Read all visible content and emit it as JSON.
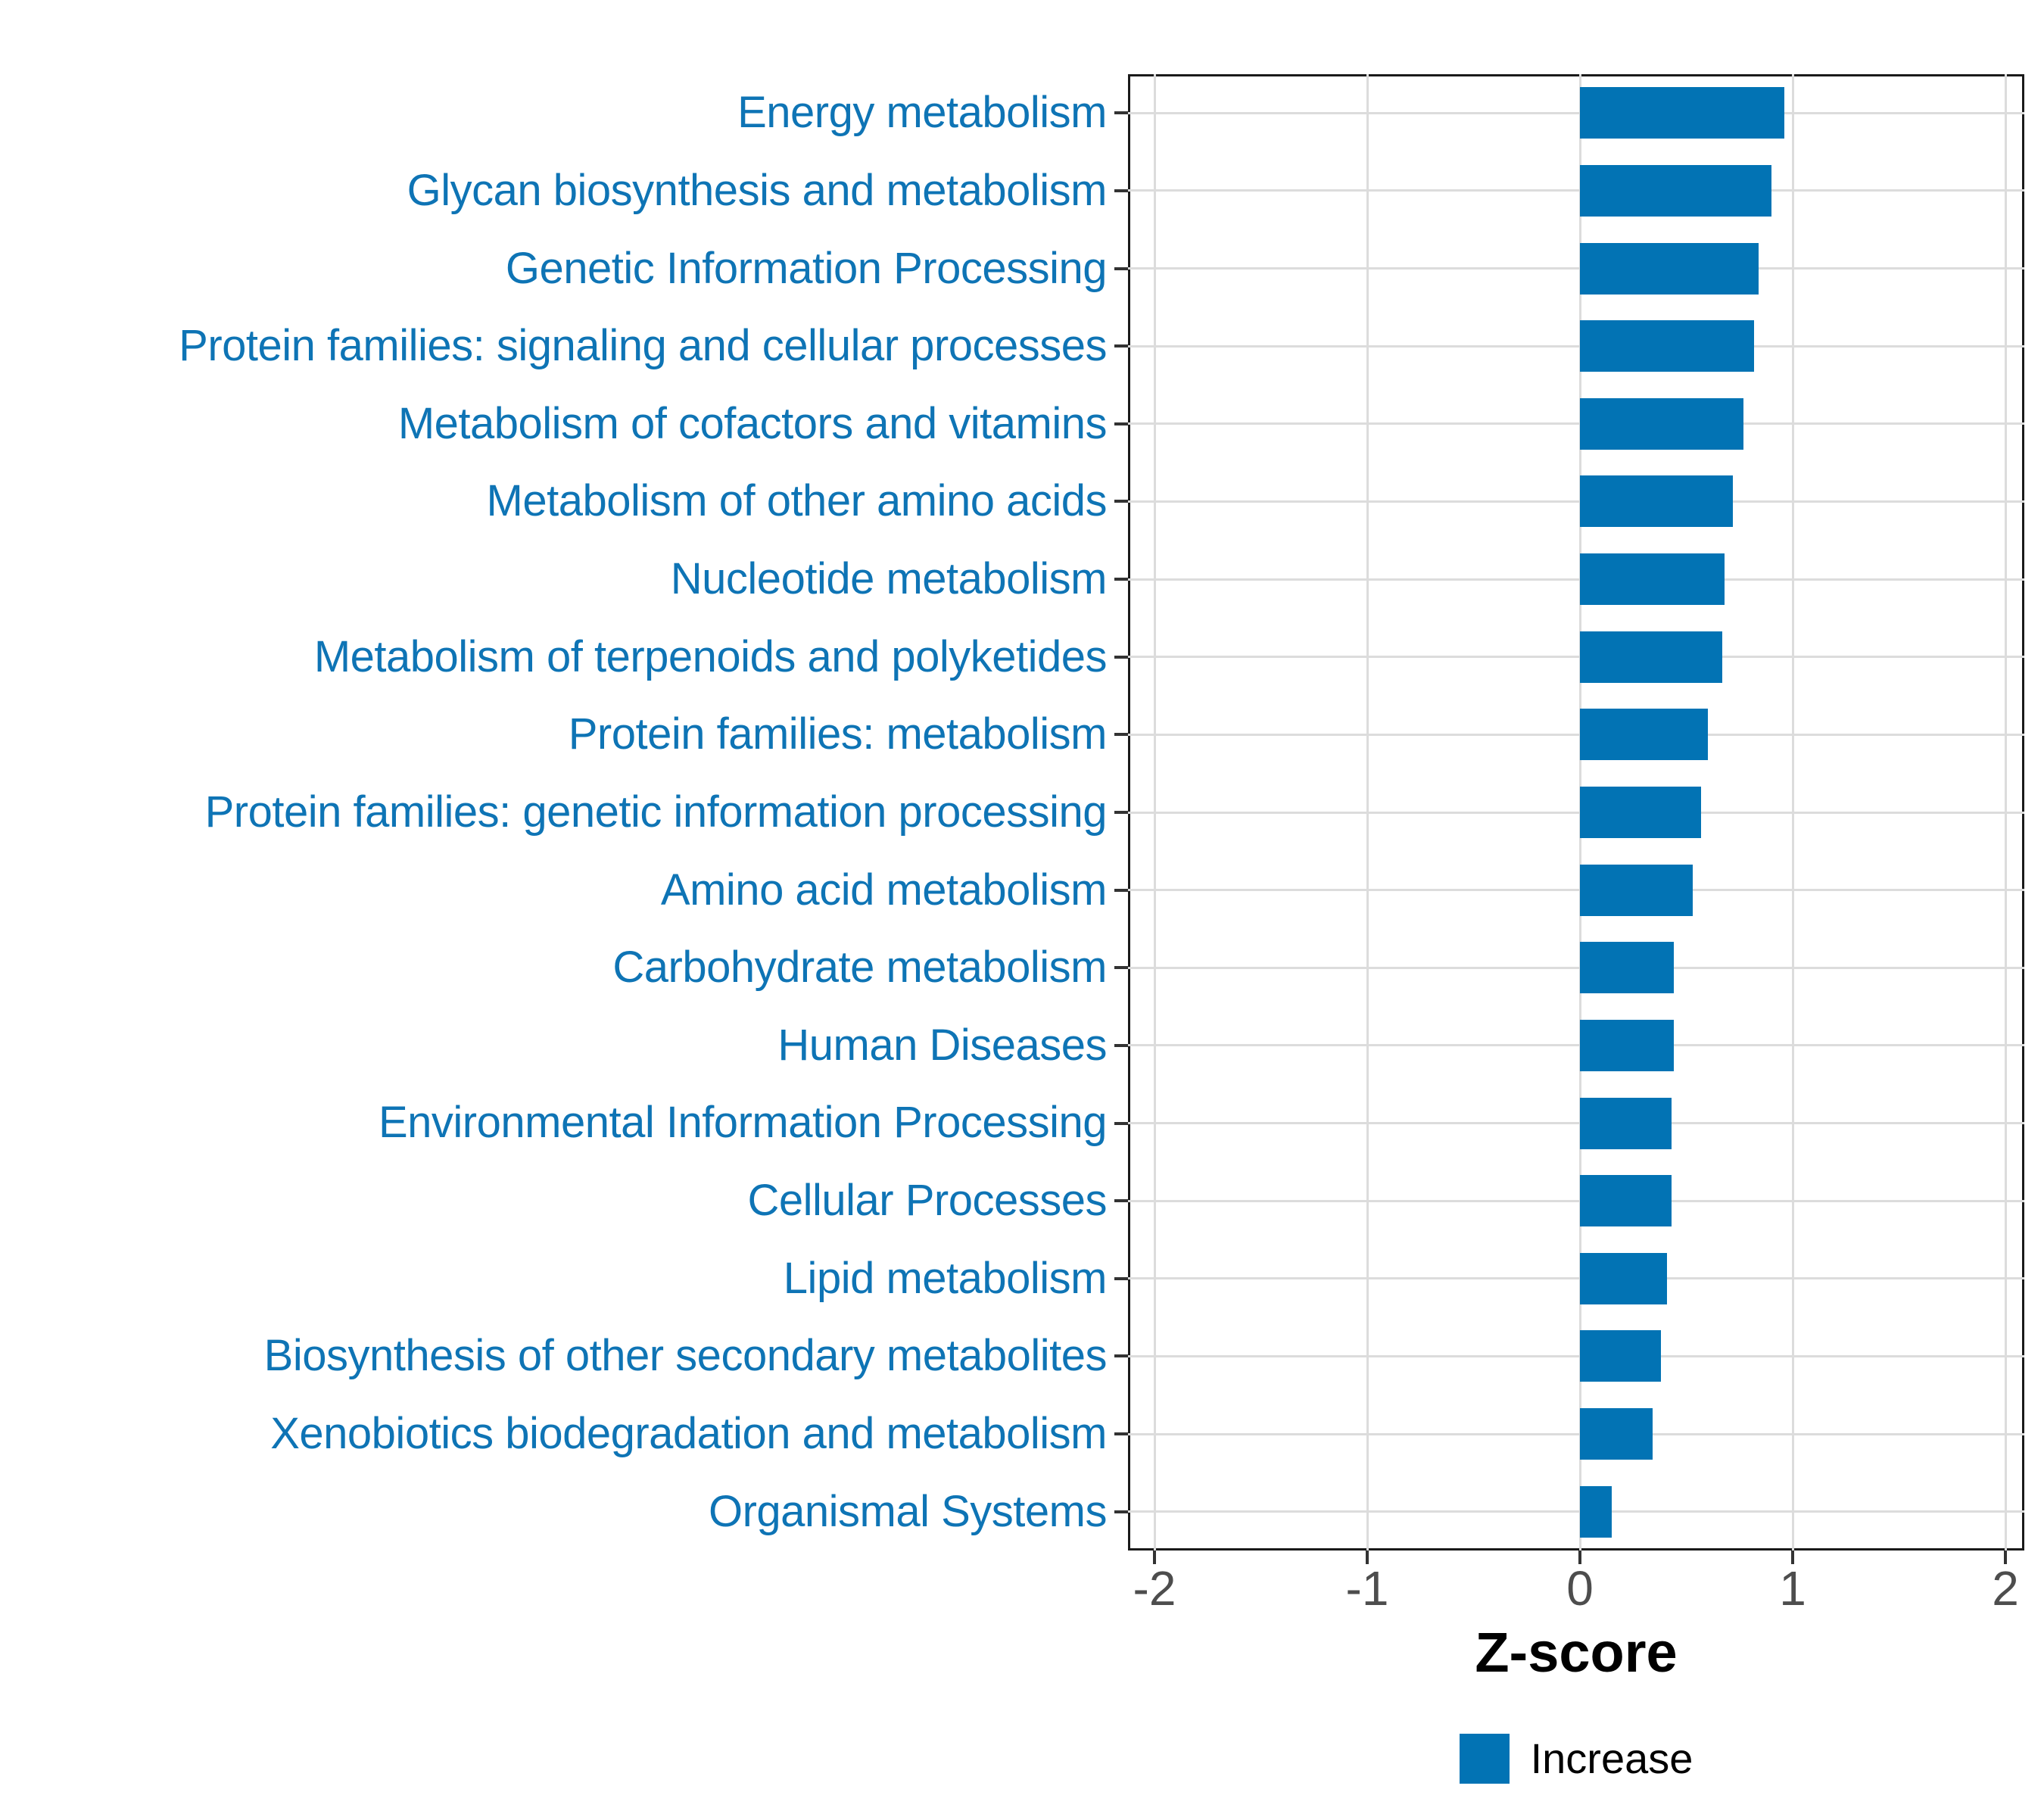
{
  "chart_data": {
    "type": "bar",
    "orientation": "horizontal",
    "title": "",
    "xlabel": "Z-score",
    "ylabel": "",
    "categories": [
      "Energy metabolism",
      "Glycan biosynthesis and metabolism",
      "Genetic Information Processing",
      "Protein families: signaling and cellular processes",
      "Metabolism of cofactors and vitamins",
      "Metabolism of other amino acids",
      "Nucleotide metabolism",
      "Metabolism of terpenoids and polyketides",
      "Protein families: metabolism",
      "Protein families: genetic information processing",
      "Amino acid metabolism",
      "Carbohydrate metabolism",
      "Human Diseases",
      "Environmental Information Processing",
      "Cellular Processes",
      "Lipid metabolism",
      "Biosynthesis of other secondary metabolites",
      "Xenobiotics biodegradation and metabolism",
      "Organismal Systems"
    ],
    "series": [
      {
        "name": "Increase",
        "values": [
          0.96,
          0.9,
          0.84,
          0.82,
          0.77,
          0.72,
          0.68,
          0.67,
          0.6,
          0.57,
          0.53,
          0.44,
          0.44,
          0.43,
          0.43,
          0.41,
          0.38,
          0.34,
          0.15
        ]
      }
    ],
    "xlim": [
      -2.1,
      2.1
    ],
    "xticks": [
      -2,
      -1,
      0,
      1,
      2
    ],
    "xtick_labels": [
      "-2",
      "-1",
      "0",
      "1",
      "2"
    ],
    "grid": "major",
    "legend_position": "bottom"
  },
  "axis": {
    "x_title": "Z-score"
  },
  "legend": {
    "items": [
      {
        "label": "Increase",
        "color": "#0273B4"
      }
    ]
  },
  "colors": {
    "bar": "#0273B4",
    "category_label": "#0E74B5",
    "gridline": "#DCDCDC",
    "panel_border": "#1A1A1A",
    "tick_mark": "#333333",
    "tick_label": "#4D4D4D",
    "axis_title": "#000000",
    "background": "#FFFFFF"
  }
}
